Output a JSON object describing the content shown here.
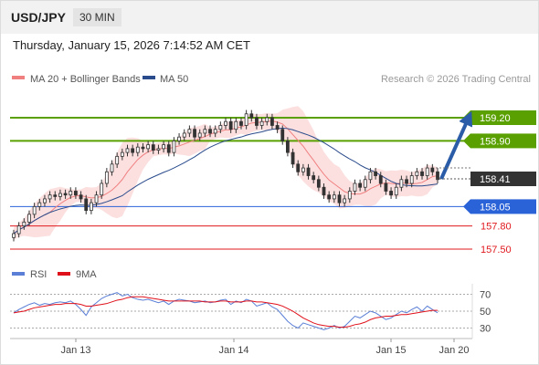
{
  "header": {
    "symbol": "USD/JPY",
    "timeframe": "30 MIN",
    "datetime": "Thursday, January 15, 2026 7:14:52 AM CET"
  },
  "legend": {
    "ma20_label": "MA 20 + Bollinger Bands",
    "ma50_label": "MA 50",
    "credit": "Research © 2026 Trading Central",
    "ma20_color": "#f08080",
    "ma50_color": "#2b4c8c"
  },
  "rsi_legend": {
    "rsi_label": "RSI",
    "ma_label": "9MA",
    "rsi_color": "#5b7fd6",
    "ma_color": "#e0101a"
  },
  "chart_data": [
    {
      "type": "candlestick",
      "title": "USD/JPY 30 MIN",
      "x_ticks": [
        "Jan 13",
        "Jan 14",
        "Jan 15",
        "Jan 20"
      ],
      "ylim": [
        157.3,
        159.5
      ],
      "current_price": "158.41",
      "levels": [
        {
          "label": "159.20",
          "value": 159.2,
          "kind": "resistance",
          "color": "#5aa000"
        },
        {
          "label": "158.90",
          "value": 158.9,
          "kind": "resistance",
          "color": "#5aa000"
        },
        {
          "label": "158.05",
          "value": 158.05,
          "kind": "pivot",
          "color": "#2a62d8"
        },
        {
          "label": "157.80",
          "value": 157.8,
          "kind": "support",
          "color": "#e0191e"
        },
        {
          "label": "157.50",
          "value": 157.5,
          "kind": "support",
          "color": "#e0191e"
        }
      ],
      "close": [
        157.7,
        157.8,
        157.85,
        157.95,
        158.05,
        158.1,
        158.15,
        158.2,
        158.18,
        158.22,
        158.2,
        158.25,
        158.2,
        158.15,
        158.0,
        158.1,
        158.2,
        158.35,
        158.5,
        158.6,
        158.7,
        158.75,
        158.8,
        158.75,
        158.82,
        158.8,
        158.85,
        158.78,
        158.8,
        158.85,
        158.75,
        158.9,
        158.95,
        159.0,
        159.05,
        158.95,
        159.0,
        159.05,
        159.0,
        159.05,
        159.1,
        159.15,
        159.05,
        159.15,
        159.1,
        159.25,
        159.2,
        159.1,
        159.15,
        159.2,
        159.1,
        159.05,
        158.9,
        158.75,
        158.6,
        158.5,
        158.55,
        158.45,
        158.4,
        158.3,
        158.2,
        158.15,
        158.2,
        158.1,
        158.15,
        158.25,
        158.35,
        158.3,
        158.4,
        158.5,
        158.45,
        158.35,
        158.25,
        158.2,
        158.3,
        158.4,
        158.35,
        158.45,
        158.5,
        158.45,
        158.55,
        158.5,
        158.4
      ]
    },
    {
      "type": "line",
      "title": "RSI",
      "yticks": [
        70,
        50,
        30
      ],
      "ylim": [
        20,
        80
      ],
      "series": [
        {
          "name": "RSI",
          "values": [
            48,
            52,
            55,
            58,
            60,
            57,
            59,
            58,
            60,
            61,
            60,
            62,
            58,
            52,
            45,
            55,
            60,
            65,
            68,
            70,
            72,
            68,
            70,
            66,
            64,
            63,
            64,
            62,
            60,
            62,
            58,
            62,
            64,
            63,
            62,
            60,
            61,
            62,
            60,
            61,
            63,
            64,
            58,
            62,
            60,
            64,
            62,
            56,
            58,
            60,
            55,
            52,
            45,
            38,
            33,
            30,
            36,
            34,
            32,
            30,
            28,
            30,
            33,
            30,
            32,
            38,
            44,
            42,
            46,
            50,
            48,
            44,
            40,
            42,
            46,
            50,
            48,
            52,
            55,
            50,
            56,
            52,
            48
          ]
        },
        {
          "name": "9MA",
          "values": [
            48,
            49,
            50,
            52,
            54,
            55,
            56,
            57,
            58,
            58,
            59,
            59,
            59,
            58,
            56,
            56,
            57,
            58,
            59,
            61,
            63,
            64,
            66,
            67,
            67,
            67,
            66,
            65,
            64,
            63,
            62,
            62,
            62,
            62,
            62,
            62,
            62,
            61,
            61,
            61,
            62,
            62,
            61,
            61,
            61,
            62,
            62,
            61,
            61,
            60,
            59,
            58,
            56,
            53,
            50,
            46,
            42,
            39,
            36,
            34,
            33,
            32,
            32,
            31,
            31,
            32,
            34,
            35,
            37,
            40,
            42,
            43,
            44,
            44,
            45,
            46,
            46,
            47,
            48,
            49,
            50,
            51,
            51
          ]
        }
      ]
    }
  ]
}
